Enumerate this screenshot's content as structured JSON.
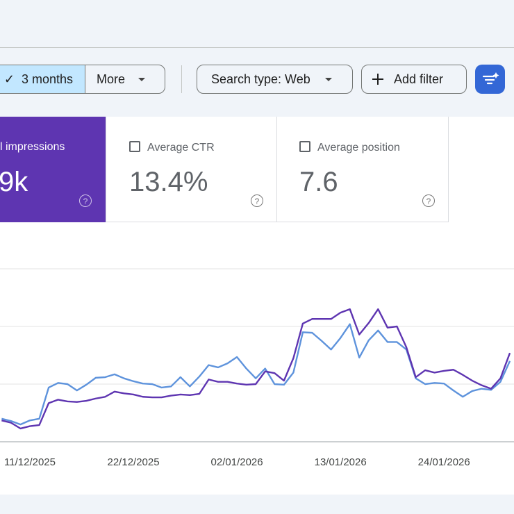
{
  "toolbar": {
    "date_range": "3 months",
    "more": "More",
    "search_type": "Search type: Web",
    "add_filter": "Add filter"
  },
  "metrics": [
    {
      "label": "l impressions",
      "value": "9k"
    },
    {
      "label": "Average CTR",
      "value": "13.4%"
    },
    {
      "label": "Average position",
      "value": "7.6"
    }
  ],
  "chart_data": {
    "type": "line",
    "categories": [
      null,
      null,
      null,
      "11/12/2025",
      null,
      null,
      null,
      null,
      null,
      null,
      null,
      null,
      null,
      null,
      "22/12/2025",
      null,
      null,
      null,
      null,
      null,
      null,
      null,
      null,
      null,
      null,
      "02/01/2026",
      null,
      null,
      null,
      null,
      null,
      null,
      null,
      null,
      null,
      null,
      "13/01/2026",
      null,
      null,
      null,
      null,
      null,
      null,
      null,
      null,
      null,
      null,
      "24/01/2026",
      null,
      null,
      null,
      null,
      null,
      null,
      null
    ],
    "series": [
      {
        "color": "#5e93dc",
        "values": [
          0.4,
          0.36,
          0.3,
          0.37,
          0.4,
          0.94,
          1.02,
          1.0,
          0.89,
          0.99,
          1.11,
          1.12,
          1.17,
          1.1,
          1.05,
          1.01,
          1.0,
          0.94,
          0.96,
          1.12,
          0.96,
          1.13,
          1.33,
          1.29,
          1.36,
          1.47,
          1.27,
          1.1,
          1.27,
          1.0,
          0.99,
          1.2,
          1.9,
          1.89,
          1.75,
          1.6,
          1.8,
          2.04,
          1.46,
          1.76,
          1.93,
          1.73,
          1.73,
          1.6,
          1.1,
          1.0,
          1.02,
          1.01,
          0.89,
          0.78,
          0.88,
          0.92,
          0.9,
          1.04,
          1.4
        ]
      },
      {
        "color": "#5e35b1",
        "values": [
          0.37,
          0.33,
          0.23,
          0.27,
          0.29,
          0.67,
          0.73,
          0.7,
          0.69,
          0.71,
          0.75,
          0.78,
          0.87,
          0.84,
          0.82,
          0.78,
          0.77,
          0.77,
          0.8,
          0.82,
          0.81,
          0.83,
          1.08,
          1.04,
          1.04,
          1.01,
          0.99,
          1.0,
          1.22,
          1.19,
          1.06,
          1.45,
          2.05,
          2.13,
          2.13,
          2.13,
          2.24,
          2.3,
          1.86,
          2.06,
          2.3,
          1.98,
          2.0,
          1.64,
          1.12,
          1.24,
          1.2,
          1.23,
          1.25,
          1.16,
          1.06,
          0.98,
          0.92,
          1.1,
          1.54
        ]
      }
    ],
    "ylim": [
      0,
      3
    ]
  }
}
